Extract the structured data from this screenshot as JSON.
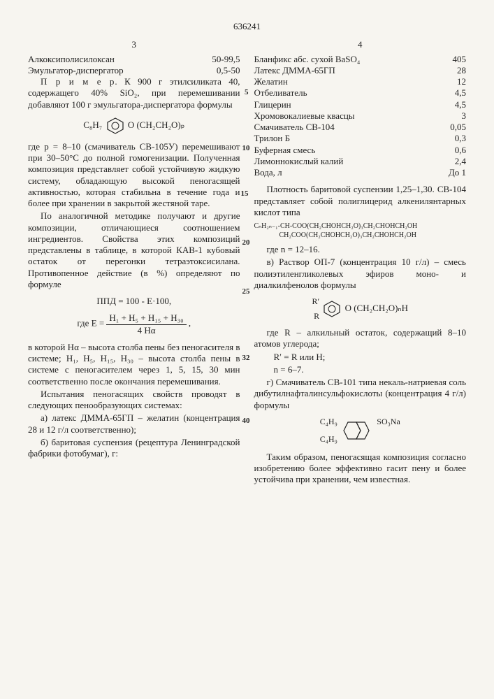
{
  "doc_number": "636241",
  "col_left_num": "3",
  "col_right_num": "4",
  "line_markers": [
    "5",
    "10",
    "15",
    "20",
    "25",
    "32",
    "40"
  ],
  "left": {
    "ingredient1": {
      "name": "Алкоксиполисилоксан",
      "val": "50-99,5"
    },
    "ingredient2": {
      "name": "Эмульгатор-диспергатор",
      "val": "0,5-50"
    },
    "example_title": "П р и м е р",
    "p1": ". К 900 г этилсиликата 40, содержащего 40% SiO₂, при перемешивании добавляют 100 г эмульгатора-диспергатора формулы",
    "formula1_left": "C₈H₇",
    "formula1_right": "O (CH₂CH₂O)ₚ",
    "p2": "где p = 8–10 (смачиватель СВ-105У) перемешивают при 30–50°С до полной гомогенизации. Полученная композиция представляет собой устойчивую жидкую систему, обладающую высокой пеногасящей активностью, которая стабильна в течение года и более при хранении в закрытой жестяной таре.",
    "p3": "По аналогичной методике получают и другие композиции, отличающиеся соотношением ингредиентов. Свойства этих композиций представлены в таблице, в которой КАВ-1 кубовый остаток от перегонки тетраэтоксисилана. Противопенное действие (в %) определяют по формуле",
    "formula2": "ППД = 100 - Е·100,",
    "formula3_label": "где   Е =",
    "formula3_num": "H₁ + H₅ + H₁₅ + H₃₀",
    "formula3_den": "4 Hα",
    "p4": "в которой Hα – высота столба пены без пеногасителя в системе; H₁, H₅, H₁₅, H₃₀ – высота столба пены в системе с пеногасителем через 1, 5, 15, 30 мин соответственно после окончания перемешивания.",
    "p5": "Испытания пеногасящих свойств проводят в следующих пенообразующих системах:",
    "p6": "а) латекс ДММА-65ГП – желатин (концентрация 28 и 12 г/л соответственно);",
    "p7": "б) баритовая суспензия (рецептура Ленинградской фабрики фотобумаг), г:"
  },
  "right": {
    "tbl": [
      {
        "n": "Бланфикс абс. сухой BaSO₄",
        "v": "405"
      },
      {
        "n": "Латекс ДММА-65ГП",
        "v": "28"
      },
      {
        "n": "Желатин",
        "v": "12"
      },
      {
        "n": "Отбеливатель",
        "v": "4,5"
      },
      {
        "n": "Глицерин",
        "v": "4,5"
      },
      {
        "n": "Хромовокалиевые квасцы",
        "v": "3"
      },
      {
        "n": "Смачиватель СВ-104",
        "v": "0,05"
      },
      {
        "n": "Трилон Б",
        "v": "0,3"
      },
      {
        "n": "Буферная смесь",
        "v": "0,6"
      },
      {
        "n": "Лимоннокислый калий",
        "v": "2,4"
      },
      {
        "n": "Вода, л",
        "v": "До 1"
      }
    ],
    "p1": "Плотность баритовой суспензии 1,25–1,30. СВ-104 представляет собой полиглицерид алкенилянтарных кислот типа",
    "chem1a": "CₙH₂ₙ₋₁-CH-COO(CH₂CHOHCH₂O)₃CH₂CHOHCH₂OH",
    "chem1b": "CH₂COO(CH₂CHOHCH₂O)₃CH₂CHOHCH₂OH",
    "p2": "где n = 12–16.",
    "p3": "в) Раствор ОП-7 (концентрация 10 г/л) – смесь полиэтиленгликолевых эфиров моно- и диалкилфенолов формулы",
    "chem2_top": "R′",
    "chem2_bot": "R",
    "chem2_right": "O (CH₂CH₂O)ₙH",
    "p4": "где R – алкильный остаток, содержащий 8–10 атомов углерода;",
    "p5": "R′ = R или H;",
    "p6": "n = 6–7.",
    "p7": "г) Смачиватель СВ-101 типа некаль-натриевая соль дибутилнафталинсульфокислоты (концентрация 4 г/л) формулы",
    "chem3_l1": "C₄H₉",
    "chem3_l2": "C₄H₉",
    "chem3_r": "SO₃Na",
    "p8": "Таким образом, пеногасящая композиция согласно изобретению более эффективно гасит пену и более устойчива при хранении, чем известная."
  }
}
